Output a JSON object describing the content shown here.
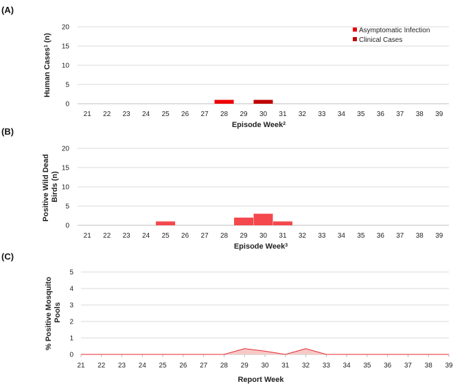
{
  "chart_data": [
    {
      "panel_label": "(A)",
      "type": "bar",
      "categories": [
        "21",
        "22",
        "23",
        "24",
        "25",
        "26",
        "27",
        "28",
        "29",
        "30",
        "31",
        "32",
        "33",
        "34",
        "35",
        "36",
        "37",
        "38",
        "39"
      ],
      "series": [
        {
          "name": "Asymptomatic Infection",
          "color": "#ee0000",
          "values": [
            0,
            0,
            0,
            0,
            0,
            0,
            0,
            1,
            0,
            0,
            0,
            0,
            0,
            0,
            0,
            0,
            0,
            0,
            0
          ]
        },
        {
          "name": "Clinical Cases",
          "color": "#c00000",
          "values": [
            0,
            0,
            0,
            0,
            0,
            0,
            0,
            0,
            0,
            1,
            0,
            0,
            0,
            0,
            0,
            0,
            0,
            0,
            0
          ]
        }
      ],
      "yticks": [
        "0",
        "5",
        "10",
        "15",
        "20"
      ],
      "ylim": [
        0,
        20
      ],
      "ylabel": "Human Cases",
      "ylabel_sup": "1",
      "ylabel_suffix": " (n)",
      "xlabel": "Episode Week",
      "xlabel_sup": "2",
      "legend": "top-right"
    },
    {
      "panel_label": "(B)",
      "type": "bar",
      "categories": [
        "21",
        "22",
        "23",
        "24",
        "25",
        "26",
        "27",
        "28",
        "29",
        "30",
        "31",
        "32",
        "33",
        "34",
        "35",
        "36",
        "37",
        "38",
        "39"
      ],
      "series": [
        {
          "name": "Positive Wild Dead Birds",
          "color": "#f4484c",
          "values": [
            0,
            0,
            0,
            0,
            1,
            0,
            0,
            0,
            2,
            3,
            1,
            0,
            0,
            0,
            0,
            0,
            0,
            0,
            0
          ]
        }
      ],
      "yticks": [
        "0",
        "5",
        "10",
        "15",
        "20"
      ],
      "ylim": [
        0,
        20
      ],
      "ylabel_lines": [
        "Positive Wild Dead",
        "Birds (n)"
      ],
      "xlabel": "Episode Week",
      "xlabel_sup": "3"
    },
    {
      "panel_label": "(C)",
      "type": "area",
      "categories": [
        "21",
        "22",
        "23",
        "24",
        "25",
        "26",
        "27",
        "28",
        "29",
        "30",
        "31",
        "32",
        "33",
        "34",
        "35",
        "36",
        "37",
        "38",
        "39"
      ],
      "series": [
        {
          "name": "% Positive Mosquito Pools",
          "color": "#e8262b",
          "fill": "#f6c9c7",
          "values": [
            0,
            0,
            0,
            0,
            0,
            0,
            0,
            0,
            0.35,
            0.2,
            0,
            0.35,
            0,
            0,
            0,
            0,
            0,
            0,
            0
          ]
        }
      ],
      "yticks": [
        "0",
        "1",
        "2",
        "3",
        "4",
        "5"
      ],
      "ylim": [
        0,
        5
      ],
      "ylabel_lines": [
        "% Positive Mosquito",
        "Pools"
      ],
      "xlabel": "Report Week"
    }
  ]
}
